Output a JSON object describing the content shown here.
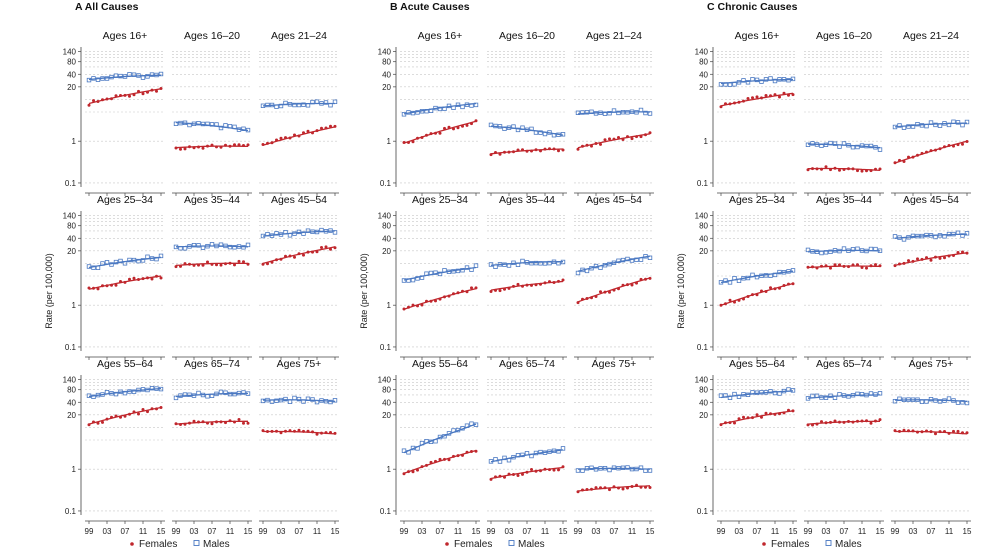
{
  "figure": {
    "panels": [
      {
        "letter": "A",
        "title": "All Causes"
      },
      {
        "letter": "B",
        "title": "Acute Causes"
      },
      {
        "letter": "C",
        "title": "Chronic Causes"
      }
    ],
    "ylabel": "Rate (per 100,000)",
    "xticks": [
      "99",
      "03",
      "07",
      "11",
      "15"
    ],
    "yticks": [
      "0.1",
      "1",
      "20",
      "40",
      "80",
      "140"
    ],
    "legend": [
      {
        "label": "Females",
        "color": "#c0272d",
        "marker": "dot"
      },
      {
        "label": "Males",
        "color": "#4a78c2",
        "marker": "square"
      }
    ]
  },
  "chart_data": {
    "type": "scatter",
    "yscale": "log",
    "ylim": [
      0.08,
      180
    ],
    "x_years": [
      1999,
      2015
    ],
    "facets": [
      "Ages 16+",
      "Ages 16–20",
      "Ages 21–24",
      "Ages 25–34",
      "Ages 35–44",
      "Ages 45–54",
      "Ages 55–64",
      "Ages 65–74",
      "Ages 75+"
    ],
    "series_names": [
      "Females",
      "Males"
    ],
    "panels": [
      {
        "name": "All Causes",
        "facets": [
          {
            "f": [
              8,
              18
            ],
            "m": [
              30,
              38
            ]
          },
          {
            "f": [
              0.7,
              0.75
            ],
            "m": [
              2.8,
              1.8
            ]
          },
          {
            "f": [
              0.8,
              2.2
            ],
            "m": [
              7,
              8
            ]
          },
          {
            "f": [
              2.4,
              5
            ],
            "m": [
              8,
              14
            ]
          },
          {
            "f": [
              9,
              10
            ],
            "m": [
              25,
              25
            ]
          },
          {
            "f": [
              10,
              25
            ],
            "m": [
              45,
              60
            ]
          },
          {
            "f": [
              12,
              30
            ],
            "m": [
              55,
              85
            ]
          },
          {
            "f": [
              12,
              14
            ],
            "m": [
              55,
              65
            ]
          },
          {
            "f": [
              8,
              7
            ],
            "m": [
              45,
              42
            ]
          }
        ]
      },
      {
        "name": "Acute Causes",
        "facets": [
          {
            "f": [
              0.9,
              3
            ],
            "m": [
              4.5,
              8
            ]
          },
          {
            "f": [
              0.5,
              0.65
            ],
            "m": [
              2.3,
              1.4
            ]
          },
          {
            "f": [
              0.7,
              1.5
            ],
            "m": [
              4.5,
              5
            ]
          },
          {
            "f": [
              0.8,
              2.5
            ],
            "m": [
              4,
              8
            ]
          },
          {
            "f": [
              2.3,
              3.7
            ],
            "m": [
              9,
              11
            ]
          },
          {
            "f": [
              1.2,
              4.5
            ],
            "m": [
              6.5,
              15
            ]
          },
          {
            "f": [
              0.8,
              2.8
            ],
            "m": [
              2.5,
              12
            ]
          },
          {
            "f": [
              0.6,
              1.1
            ],
            "m": [
              1.5,
              2.9
            ]
          },
          {
            "f": [
              0.3,
              0.4
            ],
            "m": [
              1,
              1
            ]
          }
        ]
      },
      {
        "name": "Chronic Causes",
        "facets": [
          {
            "f": [
              7,
              14
            ],
            "m": [
              24,
              30
            ]
          },
          {
            "f": [
              0.22,
              0.2
            ],
            "m": [
              0.85,
              0.7
            ]
          },
          {
            "f": [
              0.3,
              1
            ],
            "m": [
              2.2,
              2.7
            ]
          },
          {
            "f": [
              1,
              3.3
            ],
            "m": [
              3.5,
              6.5
            ]
          },
          {
            "f": [
              8,
              8.5
            ],
            "m": [
              19,
              20
            ]
          },
          {
            "f": [
              9,
              18
            ],
            "m": [
              40,
              50
            ]
          },
          {
            "f": [
              12,
              25
            ],
            "m": [
              52,
              75
            ]
          },
          {
            "f": [
              12,
              14
            ],
            "m": [
              50,
              60
            ]
          },
          {
            "f": [
              8,
              7
            ],
            "m": [
              45,
              42
            ]
          }
        ]
      }
    ]
  }
}
